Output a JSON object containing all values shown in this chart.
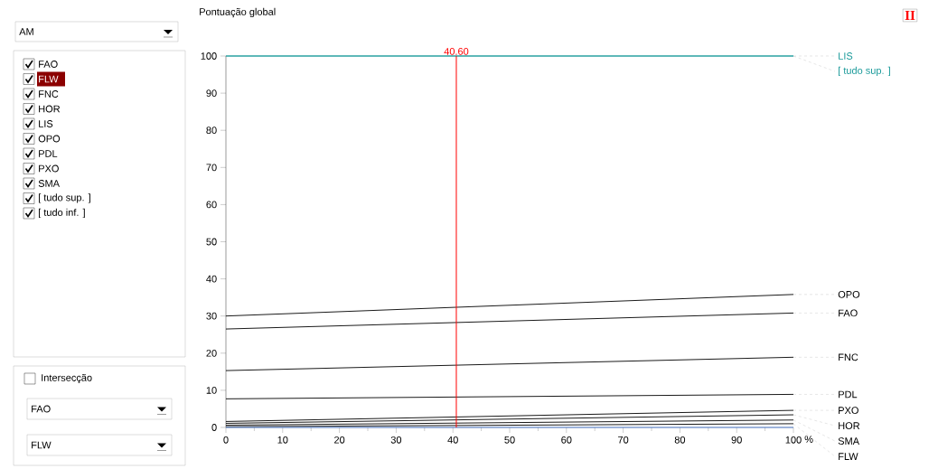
{
  "chart_data": {
    "type": "line",
    "ylabel": "Pontuação global",
    "xlabel": "%",
    "x": [
      0,
      100
    ],
    "xlim": [
      0,
      100
    ],
    "ylim": [
      0,
      100
    ],
    "xticks": [
      0,
      10,
      20,
      30,
      40,
      50,
      60,
      70,
      80,
      90,
      100
    ],
    "yticks": [
      0,
      10,
      20,
      30,
      40,
      50,
      60,
      70,
      80,
      90,
      100
    ],
    "series": [
      {
        "name": "LIS",
        "color": "#1a9a9a",
        "values": [
          100,
          100
        ]
      },
      {
        "name": "[ tudo sup. ]",
        "color": "#1a9a9a",
        "values": [
          100,
          100
        ]
      },
      {
        "name": "OPO",
        "color": "#000000",
        "values": [
          30,
          35.8
        ]
      },
      {
        "name": "FAO",
        "color": "#000000",
        "values": [
          26.5,
          30.8
        ]
      },
      {
        "name": "FNC",
        "color": "#000000",
        "values": [
          15.3,
          18.9
        ]
      },
      {
        "name": "PDL",
        "color": "#000000",
        "values": [
          7.7,
          8.9
        ]
      },
      {
        "name": "PXO",
        "color": "#000000",
        "values": [
          1.6,
          4.6
        ]
      },
      {
        "name": "HOR",
        "color": "#000000",
        "values": [
          1.1,
          3.4
        ]
      },
      {
        "name": "SMA",
        "color": "#000000",
        "values": [
          0.6,
          2.0
        ]
      },
      {
        "name": "FLW",
        "color": "#000000",
        "values": [
          0.2,
          1.0
        ]
      },
      {
        "color": "#6495ed",
        "values": [
          0,
          0
        ]
      }
    ],
    "ref_lines": [
      {
        "axis": "x",
        "value": 40.6,
        "label": "40.60",
        "color": "#ff0000"
      }
    ],
    "annotations": [
      "AM",
      "FAO",
      "FLW",
      "FNC",
      "HOR",
      "LIS",
      "OPO",
      "PDL",
      "PXO",
      "SMA",
      "[ tudo sup. ]",
      "[ tudo inf. ]",
      "Intersecção",
      "FAO",
      "FLW",
      "II"
    ]
  }
}
